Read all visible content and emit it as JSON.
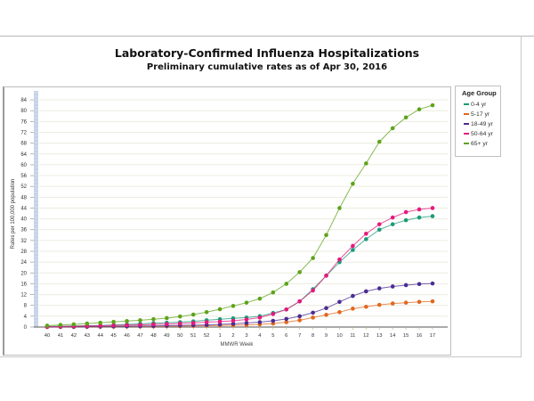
{
  "chart_data": {
    "type": "line",
    "title": "Laboratory-Confirmed Influenza Hospitalizations",
    "subtitle": "Preliminary cumulative rates as of Apr 30, 2016",
    "xlabel": "MMWR Week",
    "ylabel": "Rates per 100,000 population",
    "ylim": [
      0,
      86
    ],
    "yticks": [
      0,
      4,
      8,
      12,
      16,
      20,
      24,
      28,
      32,
      36,
      40,
      44,
      48,
      52,
      56,
      60,
      64,
      68,
      72,
      76,
      80,
      84
    ],
    "grid": true,
    "legend_title": "Age Group",
    "legend_position": "right",
    "categories": [
      "40",
      "41",
      "42",
      "43",
      "44",
      "45",
      "46",
      "47",
      "48",
      "49",
      "50",
      "51",
      "52",
      "1",
      "2",
      "3",
      "4",
      "5",
      "6",
      "7",
      "8",
      "9",
      "10",
      "11",
      "12",
      "13",
      "14",
      "15",
      "16",
      "17"
    ],
    "series": [
      {
        "name": "0-4 yr",
        "color": "#1a9a78",
        "values": [
          0.2,
          0.3,
          0.4,
          0.5,
          0.6,
          0.8,
          1.0,
          1.2,
          1.4,
          1.6,
          1.8,
          2.1,
          2.5,
          2.9,
          3.2,
          3.5,
          4.0,
          5.2,
          6.5,
          9.5,
          14.0,
          19.0,
          24.0,
          28.5,
          32.5,
          36.0,
          38.0,
          39.5,
          40.5,
          41.0
        ]
      },
      {
        "name": "5-17 yr",
        "color": "#e0681c",
        "values": [
          0.05,
          0.05,
          0.1,
          0.1,
          0.1,
          0.15,
          0.2,
          0.2,
          0.25,
          0.3,
          0.35,
          0.4,
          0.5,
          0.6,
          0.7,
          0.8,
          1.0,
          1.3,
          1.8,
          2.5,
          3.5,
          4.5,
          5.5,
          6.8,
          7.5,
          8.2,
          8.7,
          9.0,
          9.3,
          9.5
        ]
      },
      {
        "name": "18-49 yr",
        "color": "#4b2c91",
        "values": [
          0.05,
          0.1,
          0.1,
          0.15,
          0.2,
          0.25,
          0.3,
          0.35,
          0.4,
          0.5,
          0.6,
          0.7,
          0.8,
          1.0,
          1.2,
          1.5,
          1.8,
          2.3,
          3.0,
          4.0,
          5.3,
          7.0,
          9.3,
          11.5,
          13.2,
          14.3,
          15.0,
          15.5,
          15.9,
          16.1
        ]
      },
      {
        "name": "50-64 yr",
        "color": "#e5197d",
        "values": [
          0.1,
          0.2,
          0.3,
          0.4,
          0.5,
          0.6,
          0.7,
          0.8,
          1.0,
          1.1,
          1.3,
          1.5,
          1.8,
          2.0,
          2.3,
          2.8,
          3.5,
          4.8,
          6.5,
          9.5,
          13.5,
          19.0,
          25.0,
          30.0,
          34.5,
          38.0,
          40.5,
          42.5,
          43.5,
          44.0
        ]
      },
      {
        "name": "65+ yr",
        "color": "#5ea31a",
        "values": [
          0.5,
          0.8,
          1.0,
          1.3,
          1.6,
          1.9,
          2.2,
          2.5,
          2.9,
          3.3,
          3.9,
          4.6,
          5.5,
          6.6,
          7.8,
          9.0,
          10.5,
          12.8,
          16.0,
          20.3,
          25.5,
          34.0,
          44.0,
          53.0,
          60.5,
          68.5,
          73.5,
          77.5,
          80.5,
          82.0
        ]
      }
    ]
  },
  "header": {
    "title": "Laboratory-Confirmed Influenza Hospitalizations",
    "subtitle": "Preliminary cumulative rates as of Apr 30, 2016"
  },
  "axes": {
    "x_label": "MMWR Week",
    "y_label": "Rates per 100,000 population"
  },
  "legend": {
    "title": "Age Group",
    "items": [
      {
        "label": "0-4 yr",
        "color": "#1a9a78"
      },
      {
        "label": "5-17 yr",
        "color": "#e0681c"
      },
      {
        "label": "18-49 yr",
        "color": "#4b2c91"
      },
      {
        "label": "50-64 yr",
        "color": "#e5197d"
      },
      {
        "label": "65+ yr",
        "color": "#5ea31a"
      }
    ]
  }
}
